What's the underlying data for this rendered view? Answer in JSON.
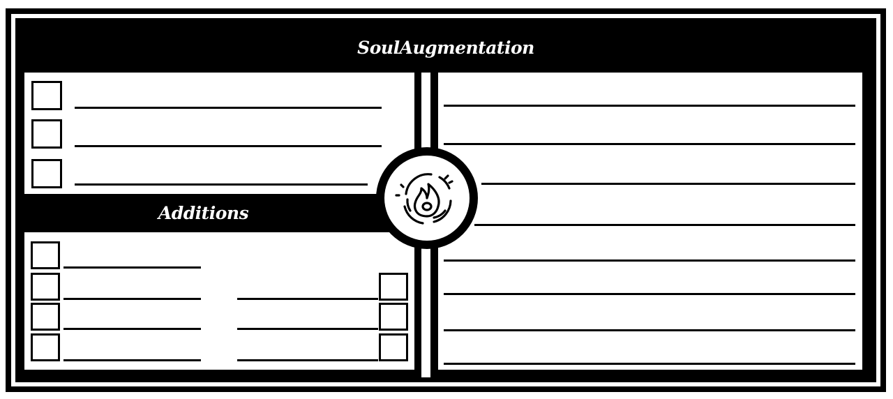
{
  "header": {
    "title": "SoulAugmentation"
  },
  "additions": {
    "title": "Additions"
  },
  "emblem": {
    "icon": "flame-icon"
  },
  "colors": {
    "ink": "#000000",
    "paper": "#ffffff"
  }
}
